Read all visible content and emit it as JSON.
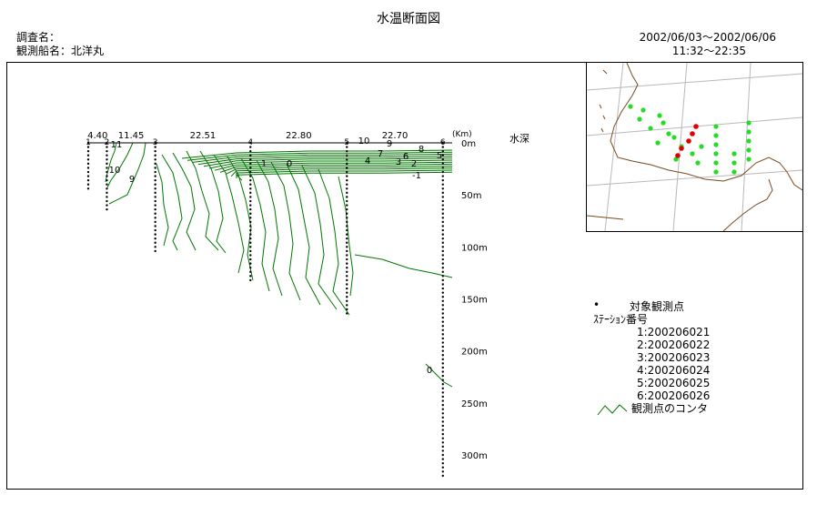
{
  "header": {
    "title": "水温断面図",
    "survey_label": "調査名：",
    "ship_label": "観測船名：北洋丸",
    "date_range": "2002/06/03～2002/06/06",
    "time_range": "11:32～22:35"
  },
  "chart_data": {
    "type": "contour",
    "title": "水温断面図",
    "depth_axis_label": "水深",
    "distance_unit": "(Km)",
    "depth_ticks": [
      "0m",
      "50m",
      "100m",
      "150m",
      "200m",
      "250m",
      "300m"
    ],
    "depth_tick_values": [
      0,
      50,
      100,
      150,
      200,
      250,
      300
    ],
    "depth_range": [
      0,
      320
    ],
    "distance_range": [
      0,
      86.06
    ],
    "stations": [
      {
        "id": "1",
        "distance_km": 0,
        "max_depth_m": 45
      },
      {
        "id": "2",
        "distance_km": 4.4,
        "max_depth_m": 65
      },
      {
        "id": "3",
        "distance_km": 15.85,
        "max_depth_m": 105
      },
      {
        "id": "4",
        "distance_km": 38.36,
        "max_depth_m": 135
      },
      {
        "id": "5",
        "distance_km": 61.16,
        "max_depth_m": 165
      },
      {
        "id": "6",
        "distance_km": 83.86,
        "max_depth_m": 320
      }
    ],
    "segment_distances": [
      "4.40",
      "11.45",
      "22.51",
      "22.80",
      "22.70"
    ],
    "contour_labels": [
      "11",
      "10",
      "9",
      "10",
      "9",
      "8",
      "7",
      "6",
      "5",
      "4",
      "3",
      "2",
      "1",
      "0",
      "-1",
      "0"
    ]
  },
  "legend": {
    "observation_point": "対象観測点",
    "station_number_title": "ｽﾃｰｼｮﾝ番号",
    "stations": [
      "1:200206021",
      "2:200206022",
      "3:200206023",
      "4:200206024",
      "5:200206025",
      "6:200206026"
    ],
    "contour": "観測点のコンタ"
  },
  "colors": {
    "contour": "#007700",
    "station_point": "#000000",
    "map_point_green": "#22dd22",
    "map_point_red": "#dd0000",
    "coast": "#7a4a20",
    "grid": "#b8b8b8"
  },
  "map": {
    "red_points": [
      [
        120,
        70
      ],
      [
        116,
        78
      ],
      [
        112,
        86
      ],
      [
        104,
        94
      ],
      [
        100,
        102
      ]
    ],
    "green_points": [
      [
        48,
        48
      ],
      [
        62,
        52
      ],
      [
        58,
        62
      ],
      [
        80,
        58
      ],
      [
        70,
        72
      ],
      [
        84,
        66
      ],
      [
        90,
        78
      ],
      [
        78,
        88
      ],
      [
        96,
        82
      ],
      [
        104,
        92
      ],
      [
        98,
        106
      ],
      [
        116,
        100
      ],
      [
        122,
        110
      ],
      [
        126,
        92
      ],
      [
        142,
        70
      ],
      [
        142,
        80
      ],
      [
        142,
        90
      ],
      [
        142,
        100
      ],
      [
        142,
        110
      ],
      [
        142,
        120
      ],
      [
        162,
        100
      ],
      [
        162,
        110
      ],
      [
        162,
        120
      ],
      [
        178,
        66
      ],
      [
        178,
        76
      ],
      [
        178,
        86
      ],
      [
        178,
        96
      ],
      [
        178,
        106
      ]
    ]
  }
}
